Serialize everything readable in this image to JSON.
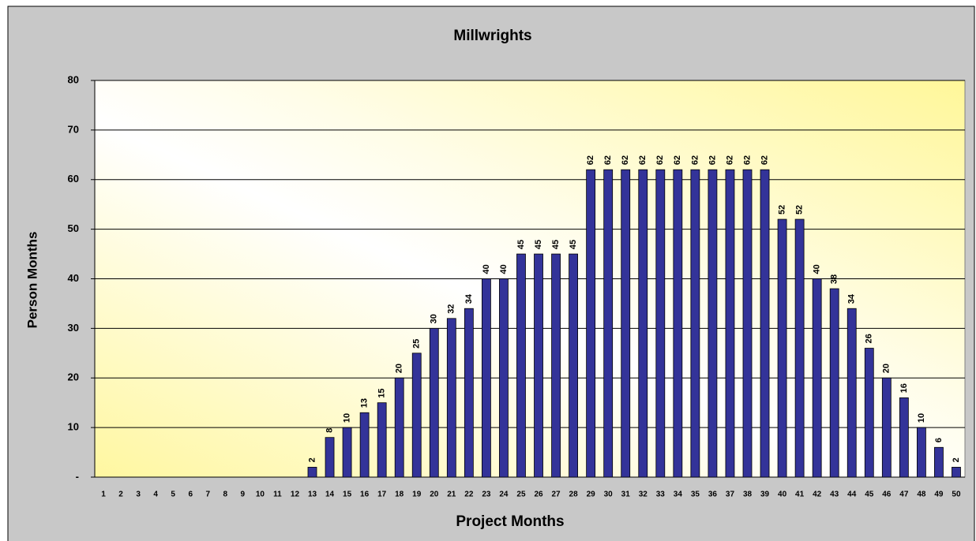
{
  "chart_data": {
    "type": "bar",
    "title": "Millwrights",
    "x_label": "Project Months",
    "y_label": "Person Months",
    "categories": [
      "1",
      "2",
      "3",
      "4",
      "5",
      "6",
      "7",
      "8",
      "9",
      "10",
      "11",
      "12",
      "13",
      "14",
      "15",
      "16",
      "17",
      "18",
      "19",
      "20",
      "21",
      "22",
      "23",
      "24",
      "25",
      "26",
      "27",
      "28",
      "29",
      "30",
      "31",
      "32",
      "33",
      "34",
      "35",
      "36",
      "37",
      "38",
      "39",
      "40",
      "41",
      "42",
      "43",
      "44",
      "45",
      "46",
      "47",
      "48",
      "49",
      "50"
    ],
    "values": [
      0,
      0,
      0,
      0,
      0,
      0,
      0,
      0,
      0,
      0,
      0,
      0,
      2,
      8,
      10,
      13,
      15,
      20,
      25,
      30,
      32,
      34,
      40,
      40,
      45,
      45,
      45,
      45,
      62,
      62,
      62,
      62,
      62,
      62,
      62,
      62,
      62,
      62,
      62,
      52,
      52,
      40,
      38,
      34,
      26,
      20,
      16,
      10,
      6,
      2
    ],
    "color": "#333399",
    "ylim": [
      0,
      80
    ],
    "yticks": [
      {
        "value": 0,
        "label": "-"
      },
      10,
      20,
      30,
      40,
      50,
      60,
      70,
      80
    ],
    "grid": true
  }
}
